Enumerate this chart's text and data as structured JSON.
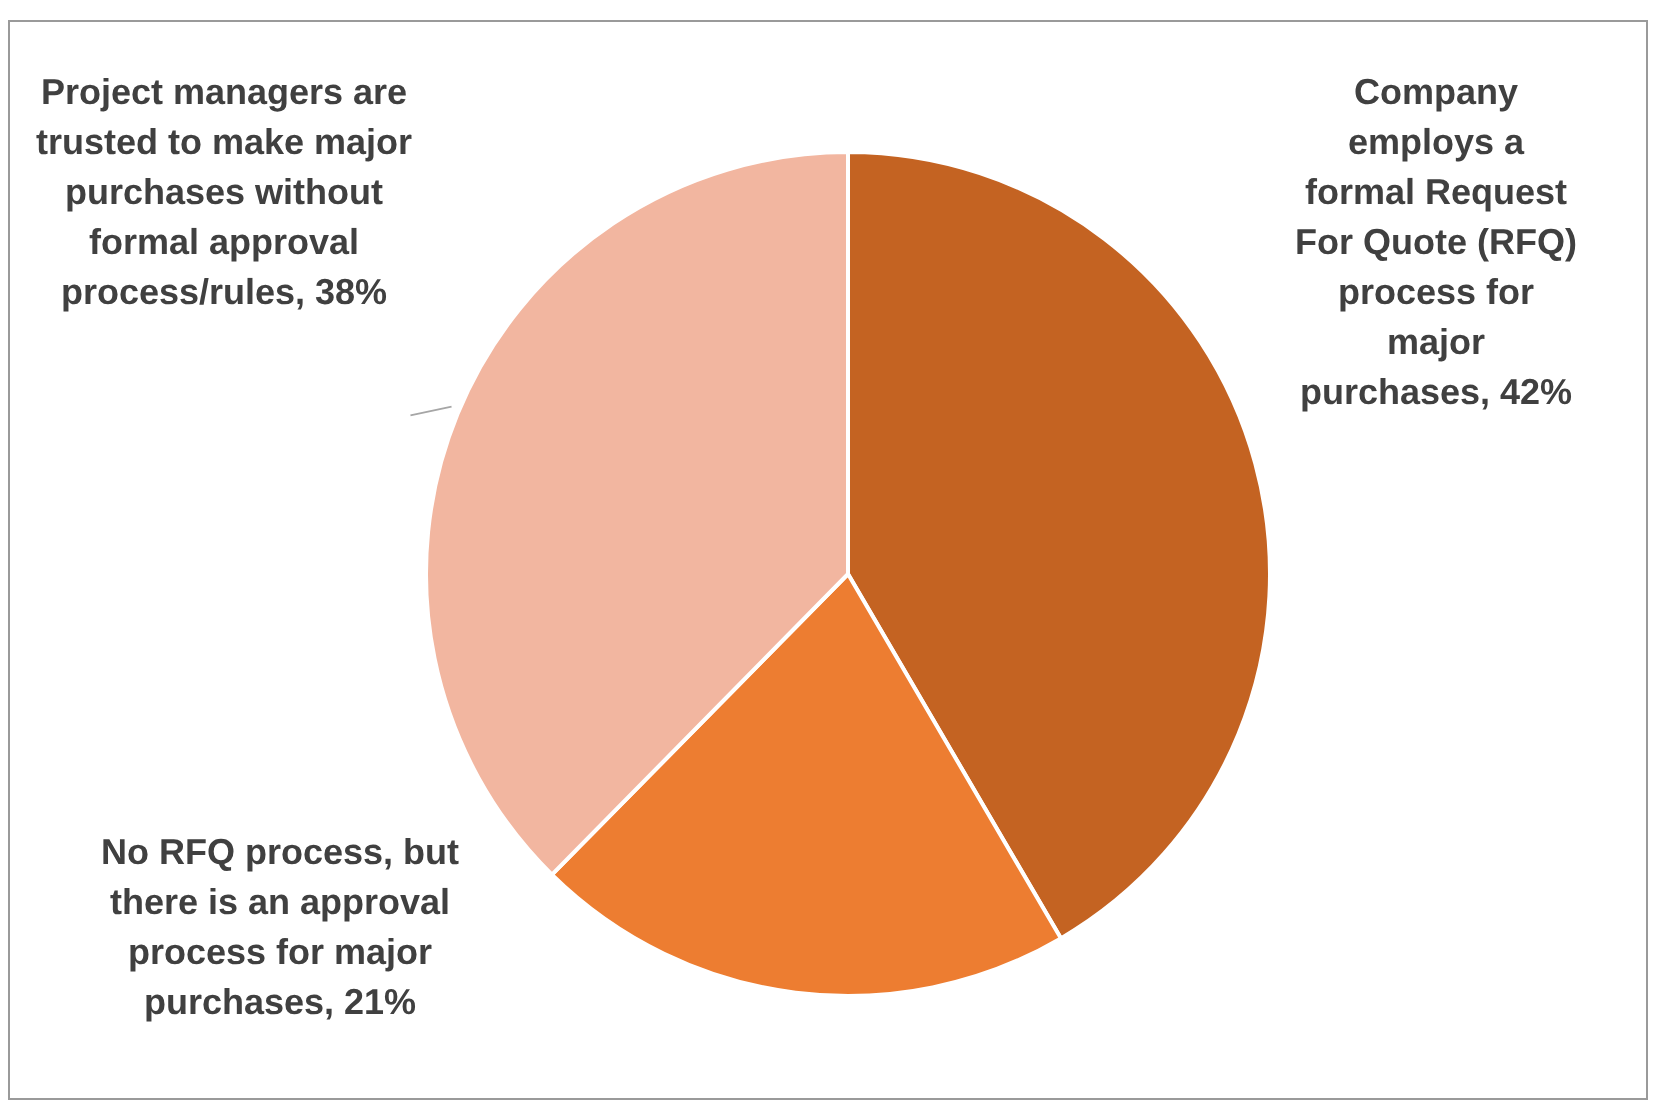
{
  "chart_data": {
    "type": "pie",
    "categories": [
      "Company employs a formal Request For Quote (RFQ) process for major purchases",
      "No RFQ process, but there is an approval process for major purchases",
      "Project managers are trusted to make major purchases without formal approval process/rules"
    ],
    "values": [
      42,
      21,
      38
    ],
    "value_labels": [
      "42%",
      "21%",
      "38%"
    ],
    "colors": [
      "#c46322",
      "#ed7d31",
      "#f2b6a0"
    ],
    "legend": false
  }
}
